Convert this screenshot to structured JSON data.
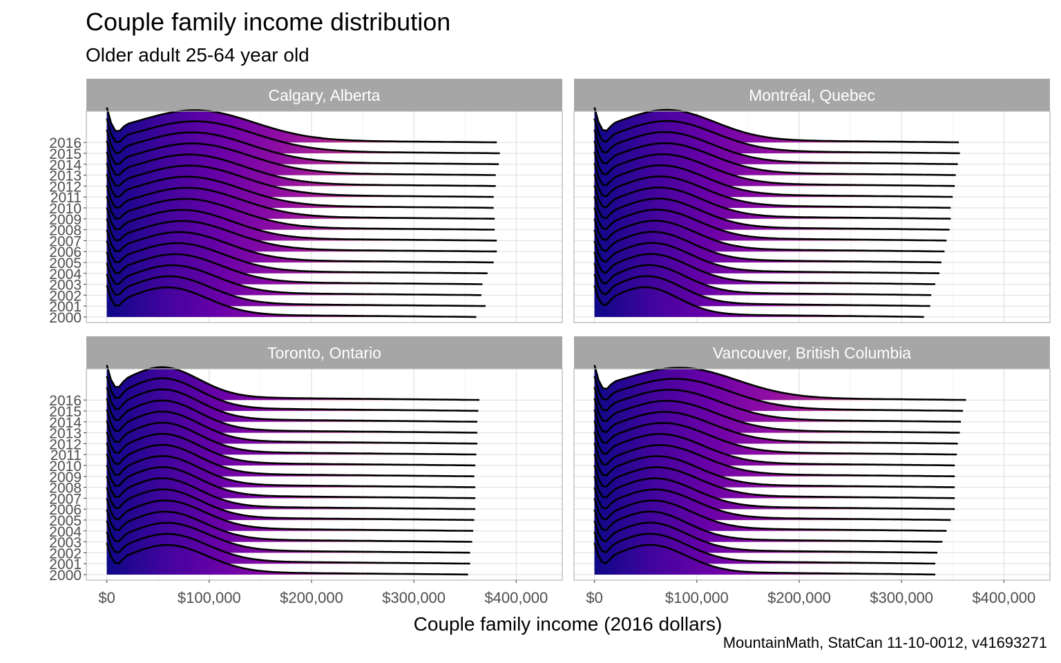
{
  "title": "Couple family income distribution",
  "subtitle": "Older adult 25-64 year old",
  "caption": "MountainMath, StatCan 11-10-0012, v41693271",
  "chart_data": {
    "type": "ridgeline",
    "xlabel": "Couple family income (2016 dollars)",
    "ylabel": "",
    "xlim": [
      -20000,
      445000
    ],
    "x_ticks": [
      0,
      100000,
      200000,
      300000,
      400000
    ],
    "x_tick_labels": [
      "$0",
      "$100,000",
      "$200,000",
      "$300,000",
      "$400,000"
    ],
    "years": [
      "2000",
      "2001",
      "2002",
      "2003",
      "2004",
      "2005",
      "2006",
      "2007",
      "2008",
      "2009",
      "2010",
      "2011",
      "2012",
      "2013",
      "2014",
      "2015",
      "2016"
    ],
    "fill": {
      "scale": "plasma",
      "low": "#0d0887",
      "high": "#fdb42f",
      "mapped_to": "x"
    },
    "grid": true,
    "panels": [
      {
        "name": "Calgary, Alberta",
        "max_income": [
          361000,
          370000,
          366000,
          367000,
          372000,
          378000,
          381000,
          381000,
          379000,
          379000,
          378000,
          378000,
          380000,
          380000,
          383000,
          384000,
          381000
        ],
        "peak_income": [
          60000,
          62000,
          65000,
          68000,
          70000,
          72000,
          75000,
          75000,
          78000,
          80000,
          80000,
          82000,
          82000,
          85000,
          85000,
          88000,
          88000
        ]
      },
      {
        "name": "Montréal, Quebec",
        "max_income": [
          322000,
          328000,
          329000,
          333000,
          337000,
          339000,
          342000,
          344000,
          347000,
          348000,
          348000,
          350000,
          352000,
          353000,
          355000,
          357000,
          356000
        ],
        "peak_income": [
          50000,
          52000,
          54000,
          56000,
          57000,
          58000,
          60000,
          62000,
          63000,
          64000,
          65000,
          66000,
          68000,
          70000,
          70000,
          72000,
          72000
        ]
      },
      {
        "name": "Toronto, Ontario",
        "max_income": [
          353000,
          355000,
          355000,
          357000,
          358000,
          359000,
          360000,
          360000,
          360000,
          359000,
          360000,
          361000,
          362000,
          362000,
          362000,
          363000,
          364000
        ],
        "peak_income": [
          60000,
          60000,
          60000,
          58000,
          58000,
          56000,
          55000,
          55000,
          55000,
          55000,
          55000,
          55000,
          55000,
          55000,
          55000,
          55000,
          55000
        ]
      },
      {
        "name": "Vancouver, British Columbia",
        "max_income": [
          333000,
          333000,
          335000,
          340000,
          344000,
          348000,
          352000,
          352000,
          352000,
          352000,
          352000,
          354000,
          355000,
          357000,
          358000,
          360000,
          363000
        ],
        "peak_income": [
          55000,
          55000,
          55000,
          55000,
          58000,
          60000,
          60000,
          62000,
          62000,
          65000,
          65000,
          68000,
          70000,
          72000,
          75000,
          80000,
          85000
        ]
      }
    ]
  }
}
